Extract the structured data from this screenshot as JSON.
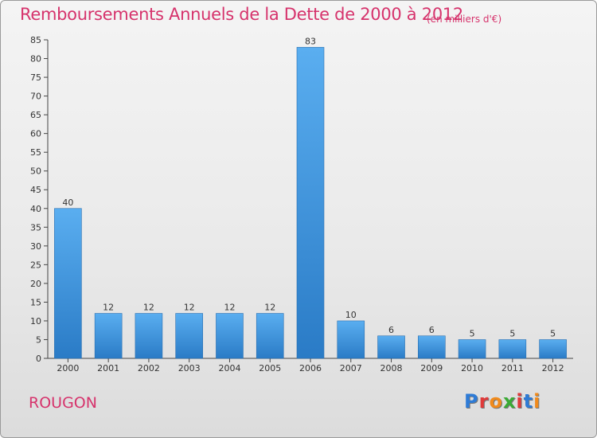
{
  "header": {
    "title": "Remboursements Annuels de la Dette de 2000 à 2012",
    "subtitle": "(en milliers d'€)"
  },
  "footer": {
    "commune": "ROUGON",
    "brand": "Proxiti",
    "brand_colors": [
      "#2e7bd6",
      "#e03a3a",
      "#f08a1c",
      "#3aaa35",
      "#e03a3a",
      "#2e7bd6",
      "#f08a1c"
    ]
  },
  "colors": {
    "bar": "#3a8fd6",
    "title": "#d6336c"
  },
  "chart_data": {
    "type": "bar",
    "title": "Remboursements Annuels de la Dette de 2000 à 2012",
    "xlabel": "",
    "ylabel": "",
    "categories": [
      "2000",
      "2001",
      "2002",
      "2003",
      "2004",
      "2005",
      "2006",
      "2007",
      "2008",
      "2009",
      "2010",
      "2011",
      "2012"
    ],
    "values": [
      40,
      12,
      12,
      12,
      12,
      12,
      83,
      10,
      6,
      6,
      5,
      5,
      5
    ],
    "ylim": [
      0,
      85
    ],
    "yticks": [
      0,
      5,
      10,
      15,
      20,
      25,
      30,
      35,
      40,
      45,
      50,
      55,
      60,
      65,
      70,
      75,
      80,
      85
    ],
    "grid": false,
    "legend": "none"
  }
}
